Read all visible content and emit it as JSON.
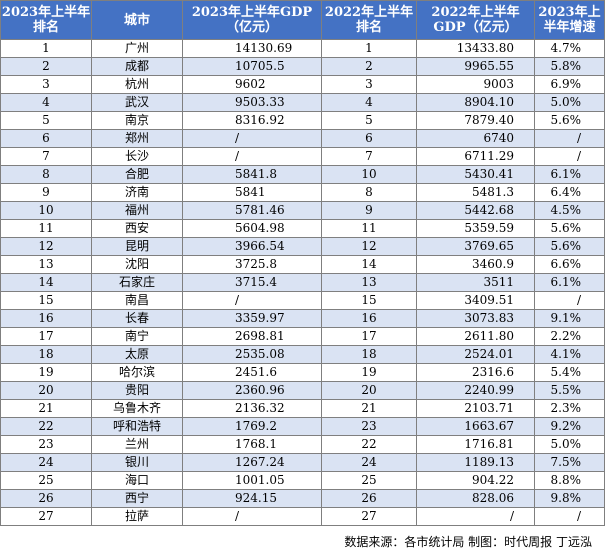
{
  "headers": {
    "rank2023": "2023年上半年排名",
    "city": "城市",
    "gdp2023": "2023年上半年GDP（亿元）",
    "rank2022": "2022年上半年排名",
    "gdp2022": "2022年上半年GDP（亿元）",
    "growth": "2023年上半年增速"
  },
  "rows": [
    {
      "rank2023": "1",
      "city": "广州",
      "gdp2023": "14130.69",
      "rank2022": "1",
      "gdp2022": "13433.80",
      "growth": "4.7%"
    },
    {
      "rank2023": "2",
      "city": "成都",
      "gdp2023": "10705.5",
      "rank2022": "2",
      "gdp2022": "9965.55",
      "growth": "5.8%"
    },
    {
      "rank2023": "3",
      "city": "杭州",
      "gdp2023": "9602",
      "rank2022": "3",
      "gdp2022": "9003",
      "growth": "6.9%"
    },
    {
      "rank2023": "4",
      "city": "武汉",
      "gdp2023": "9503.33",
      "rank2022": "4",
      "gdp2022": "8904.10",
      "growth": "5.0%"
    },
    {
      "rank2023": "5",
      "city": "南京",
      "gdp2023": "8316.92",
      "rank2022": "5",
      "gdp2022": "7879.40",
      "growth": "5.6%"
    },
    {
      "rank2023": "6",
      "city": "郑州",
      "gdp2023": "/",
      "rank2022": "6",
      "gdp2022": "6740",
      "growth": "/"
    },
    {
      "rank2023": "7",
      "city": "长沙",
      "gdp2023": "/",
      "rank2022": "7",
      "gdp2022": "6711.29",
      "growth": "/"
    },
    {
      "rank2023": "8",
      "city": "合肥",
      "gdp2023": "5841.8",
      "rank2022": "10",
      "gdp2022": "5430.41",
      "growth": "6.1%"
    },
    {
      "rank2023": "9",
      "city": "济南",
      "gdp2023": "5841",
      "rank2022": "8",
      "gdp2022": "5481.3",
      "growth": "6.4%"
    },
    {
      "rank2023": "10",
      "city": "福州",
      "gdp2023": "5781.46",
      "rank2022": "9",
      "gdp2022": "5442.68",
      "growth": "4.5%"
    },
    {
      "rank2023": "11",
      "city": "西安",
      "gdp2023": "5604.98",
      "rank2022": "11",
      "gdp2022": "5359.59",
      "growth": "5.6%"
    },
    {
      "rank2023": "12",
      "city": "昆明",
      "gdp2023": "3966.54",
      "rank2022": "12",
      "gdp2022": "3769.65",
      "growth": "5.6%"
    },
    {
      "rank2023": "13",
      "city": "沈阳",
      "gdp2023": "3725.8",
      "rank2022": "14",
      "gdp2022": "3460.9",
      "growth": "6.6%"
    },
    {
      "rank2023": "14",
      "city": "石家庄",
      "gdp2023": "3715.4",
      "rank2022": "13",
      "gdp2022": "3511",
      "growth": "6.1%"
    },
    {
      "rank2023": "15",
      "city": "南昌",
      "gdp2023": "/",
      "rank2022": "15",
      "gdp2022": "3409.51",
      "growth": "/"
    },
    {
      "rank2023": "16",
      "city": "长春",
      "gdp2023": "3359.97",
      "rank2022": "16",
      "gdp2022": "3073.83",
      "growth": "9.1%"
    },
    {
      "rank2023": "17",
      "city": "南宁",
      "gdp2023": "2698.81",
      "rank2022": "17",
      "gdp2022": "2611.80",
      "growth": "2.2%"
    },
    {
      "rank2023": "18",
      "city": "太原",
      "gdp2023": "2535.08",
      "rank2022": "18",
      "gdp2022": "2524.01",
      "growth": "4.1%"
    },
    {
      "rank2023": "19",
      "city": "哈尔滨",
      "gdp2023": "2451.6",
      "rank2022": "19",
      "gdp2022": "2316.6",
      "growth": "5.4%"
    },
    {
      "rank2023": "20",
      "city": "贵阳",
      "gdp2023": "2360.96",
      "rank2022": "20",
      "gdp2022": "2240.99",
      "growth": "5.5%"
    },
    {
      "rank2023": "21",
      "city": "乌鲁木齐",
      "gdp2023": "2136.32",
      "rank2022": "21",
      "gdp2022": "2103.71",
      "growth": "2.3%"
    },
    {
      "rank2023": "22",
      "city": "呼和浩特",
      "gdp2023": "1769.2",
      "rank2022": "23",
      "gdp2022": "1663.67",
      "growth": "9.2%"
    },
    {
      "rank2023": "23",
      "city": "兰州",
      "gdp2023": "1768.1",
      "rank2022": "22",
      "gdp2022": "1716.81",
      "growth": "5.0%"
    },
    {
      "rank2023": "24",
      "city": "银川",
      "gdp2023": "1267.24",
      "rank2022": "24",
      "gdp2022": "1189.13",
      "growth": "7.5%"
    },
    {
      "rank2023": "25",
      "city": "海口",
      "gdp2023": "1001.05",
      "rank2022": "25",
      "gdp2022": "904.22",
      "growth": "8.8%"
    },
    {
      "rank2023": "26",
      "city": "西宁",
      "gdp2023": "924.15",
      "rank2022": "26",
      "gdp2022": "828.06",
      "growth": "9.8%"
    },
    {
      "rank2023": "27",
      "city": "拉萨",
      "gdp2023": "/",
      "rank2022": "27",
      "gdp2022": "/",
      "growth": "/"
    }
  ],
  "caption": "数据来源：各市统计局 制图：时代周报 丁远泓",
  "colors": {
    "header_bg": "#4472c4",
    "header_text": "#ffffff",
    "stripe_bg": "#dae3f3",
    "border": "#7f7f7f"
  }
}
